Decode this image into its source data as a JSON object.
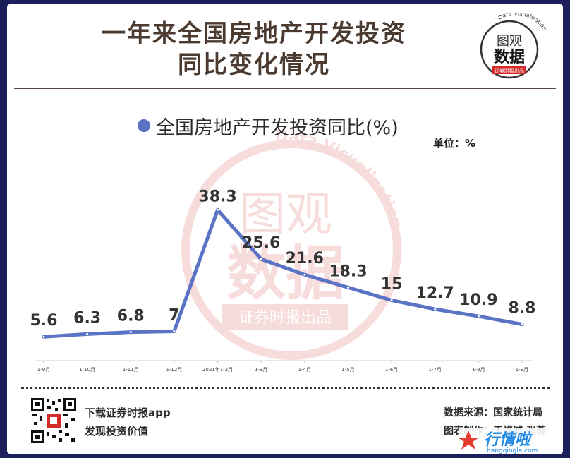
{
  "header": {
    "title_line1": "一年来全国房地产开发投资",
    "title_line2": "同比变化情况"
  },
  "logo": {
    "text_top": "图观",
    "text_main": "数据",
    "text_sub": "证券时报出品",
    "text_arc": "Data Visualization"
  },
  "watermark": {
    "text_top": "图观",
    "text_main": "数据",
    "text_sub": "证券时报出品",
    "text_arc": "Data Visualization"
  },
  "legend": {
    "label": "全国房地产开发投资同比(%)"
  },
  "unit": "单位：%",
  "chart_data": {
    "type": "line",
    "categories": [
      "1-9月",
      "1-10月",
      "1-11月",
      "1-12月",
      "2021年1-2月",
      "1-3月",
      "1-4月",
      "1-5月",
      "1-6月",
      "1-7月",
      "1-8月",
      "1-9月"
    ],
    "series": [
      {
        "name": "全国房地产开发投资同比(%)",
        "values": [
          5.6,
          6.3,
          6.8,
          7,
          38.3,
          25.6,
          21.6,
          18.3,
          15,
          12.7,
          10.9,
          8.8
        ]
      }
    ],
    "value_labels": [
      "5.6",
      "6.3",
      "6.8",
      "7",
      "38.3",
      "25.6",
      "21.6",
      "18.3",
      "15",
      "12.7",
      "10.9",
      "8.8"
    ],
    "ylim": [
      0,
      40
    ],
    "grid": false,
    "line_color": "#5a73c4"
  },
  "footer": {
    "download": "下载证券时报app",
    "slogan": "发现投资价值",
    "source": "数据来源：国家统计局",
    "credit": "图表制作：王烨城 张蓉"
  },
  "brand": {
    "text": "行情啦",
    "url_text": "hangqingla.com"
  }
}
